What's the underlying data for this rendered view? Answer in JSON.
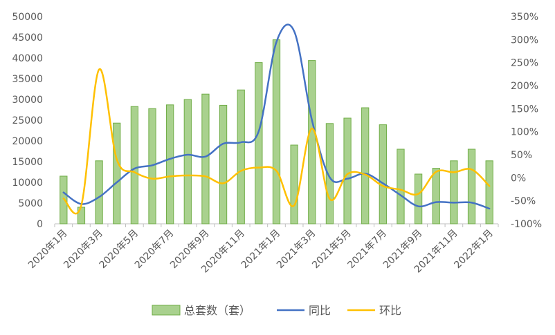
{
  "chart_data": {
    "type": "bar",
    "title": "",
    "xlabel": "",
    "ylabel": "",
    "categories": [
      "2020年1月",
      "2020年2月",
      "2020年3月",
      "2020年4月",
      "2020年5月",
      "2020年6月",
      "2020年7月",
      "2020年8月",
      "2020年9月",
      "2020年10月",
      "2020年11月",
      "2020年12月",
      "2021年1月",
      "2021年2月",
      "2021年3月",
      "2021年4月",
      "2021年5月",
      "2021年6月",
      "2021年7月",
      "2021年8月",
      "2021年9月",
      "2021年10月",
      "2021年11月",
      "2021年12月",
      "2022年1月"
    ],
    "x_tick_labels": [
      "2020年1月",
      "2020年3月",
      "2020年5月",
      "2020年7月",
      "2020年9月",
      "2020年11月",
      "2021年1月",
      "2021年3月",
      "2021年5月",
      "2021年7月",
      "2021年9月",
      "2021年11月",
      "2022年1月"
    ],
    "ylim_left": [
      0,
      50000
    ],
    "yticks_left": [
      "0",
      "5000",
      "10000",
      "15000",
      "20000",
      "25000",
      "30000",
      "35000",
      "40000",
      "45000",
      "50000"
    ],
    "ylim_right": [
      -100,
      350
    ],
    "yticks_right": [
      "-100%",
      "-50%",
      "0%",
      "50%",
      "100%",
      "150%",
      "200%",
      "250%",
      "300%",
      "350%"
    ],
    "legend_position": "bottom",
    "grid": false,
    "series": [
      {
        "name": "总套数（套）",
        "type": "bar",
        "axis": "left",
        "color": "#a9d18e",
        "stroke": "#70ad47",
        "values": [
          11500,
          4000,
          15200,
          24300,
          28300,
          27800,
          28700,
          30000,
          31300,
          28600,
          32300,
          38900,
          44400,
          19000,
          39400,
          24200,
          25500,
          28000,
          23900,
          18000,
          12000,
          13400,
          15200,
          18000,
          15200
        ]
      },
      {
        "name": "同比",
        "type": "line",
        "axis": "right",
        "color": "#4472c4",
        "values": [
          -32,
          -57,
          -42,
          -10,
          20,
          27,
          41,
          50,
          46,
          74,
          77,
          101,
          295,
          318,
          125,
          1,
          -2,
          9,
          -12,
          -38,
          -62,
          -53,
          -54,
          -54,
          -67
        ]
      },
      {
        "name": "环比",
        "type": "line",
        "axis": "right",
        "color": "#ffc000",
        "values": [
          -45,
          -60,
          235,
          40,
          12,
          -2,
          3,
          5,
          3,
          -12,
          15,
          22,
          15,
          -60,
          107,
          -46,
          8,
          7,
          -18,
          -26,
          -35,
          13,
          12,
          18,
          -18
        ]
      }
    ]
  }
}
